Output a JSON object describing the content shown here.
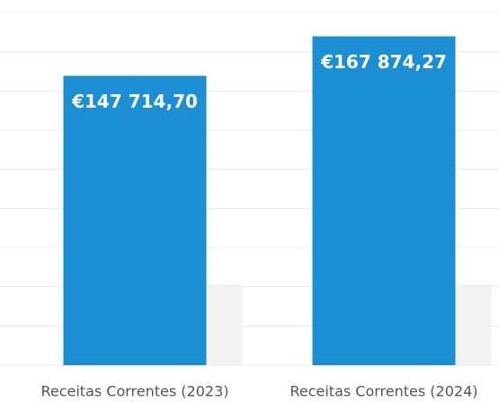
{
  "chart_data": {
    "type": "bar",
    "categories": [
      "Receitas Correntes (2023)",
      "Receitas Correntes (2024)"
    ],
    "values": [
      147714.7,
      167874.27
    ],
    "value_labels": [
      "€147 714,70",
      "€167 874,27"
    ],
    "color": "#1b8ed4",
    "ylim": [
      0,
      180000
    ],
    "yticks": [
      0,
      20000,
      40000,
      60000,
      80000,
      100000,
      120000,
      140000,
      160000,
      180000
    ],
    "grid": true
  }
}
